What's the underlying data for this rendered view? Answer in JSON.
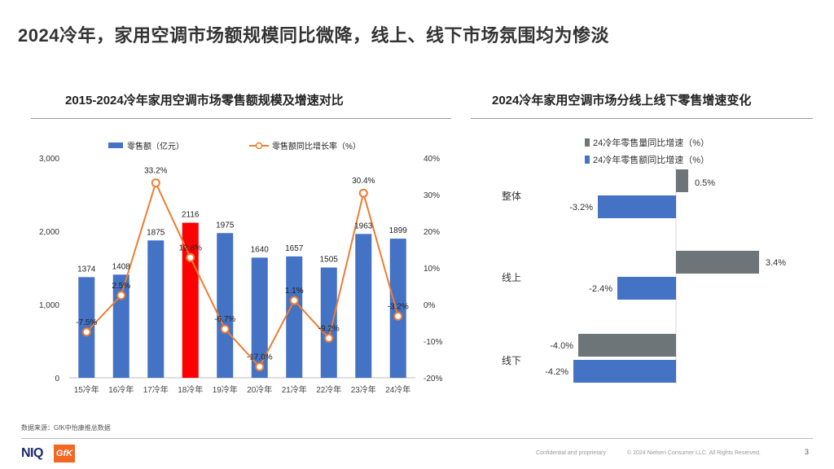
{
  "slide": {
    "title": "2024冷年，家用空调市场额规模同比微降，线上、线下市场氛围均为惨淡",
    "source": "数据来源：GfK中怡康推总数据",
    "confidential": "Confidential and proprietary",
    "copyright": "© 2024 Nielsen Consumer LLC. All Rights Reserved.",
    "page_number": "3",
    "logo_niq": "NIQ",
    "logo_gfk": "GfK"
  },
  "colors": {
    "bar_blue": "#4472C4",
    "bar_highlight": "#FF0000",
    "line_orange": "#ED7D31",
    "bar_grey": "#6D7578"
  },
  "chart_data": [
    {
      "type": "bar+line",
      "title": "2015-2024冷年家用空调市场零售额规模及增速对比",
      "categories": [
        "15冷年",
        "16冷年",
        "17冷年",
        "18冷年",
        "19冷年",
        "20冷年",
        "21冷年",
        "22冷年",
        "23冷年",
        "24冷年"
      ],
      "series": [
        {
          "name": "零售额（亿元）",
          "kind": "bar",
          "axis": "left",
          "values": [
            1374,
            1408,
            1875,
            2116,
            1975,
            1640,
            1657,
            1505,
            1963,
            1899
          ],
          "labels": [
            "1374",
            "1408",
            "1875",
            "2116",
            "1975",
            "1640",
            "1657",
            "1505",
            "1963",
            "1899"
          ]
        },
        {
          "name": "零售额同比增长率（%）",
          "kind": "line",
          "axis": "right",
          "values": [
            -7.5,
            2.5,
            33.2,
            12.8,
            -6.7,
            -17.0,
            1.1,
            -9.2,
            30.4,
            -3.2
          ],
          "labels": [
            "-7.5%",
            "2.5%",
            "33.2%",
            "12.8%",
            "-6.7%",
            "-17.0%",
            "1.1%",
            "-9.2%",
            "30.4%",
            "-3.2%"
          ]
        }
      ],
      "highlight_index": 3,
      "y_left": {
        "min": 0,
        "max": 3000,
        "ticks": [
          0,
          1000,
          2000,
          3000
        ],
        "tick_labels": [
          "0",
          "1,000",
          "2,000",
          "3,000"
        ]
      },
      "y_right": {
        "min": -20,
        "max": 40,
        "ticks": [
          -20,
          -10,
          0,
          10,
          20,
          30,
          40
        ],
        "tick_labels": [
          "-20%",
          "-10%",
          "0%",
          "10%",
          "20%",
          "30%",
          "40%"
        ]
      },
      "legend": [
        "零售额（亿元）",
        "零售额同比增长率（%）"
      ],
      "legend_position": "top"
    },
    {
      "type": "horizontal-bar",
      "title": "2024冷年家用空调市场分线上线下零售增速变化",
      "categories": [
        "整体",
        "线上",
        "线下"
      ],
      "series": [
        {
          "name": "24冷年零售量同比增速（%）",
          "values": [
            0.5,
            3.4,
            -4.0
          ],
          "labels": [
            "0.5%",
            "3.4%",
            "-4.0%"
          ]
        },
        {
          "name": "24冷年零售额同比增速（%）",
          "values": [
            -3.2,
            -2.4,
            -4.2
          ],
          "labels": [
            "-3.2%",
            "-2.4%",
            "-4.2%"
          ]
        }
      ],
      "x_range": [
        -5,
        5
      ],
      "legend_position": "top"
    }
  ]
}
